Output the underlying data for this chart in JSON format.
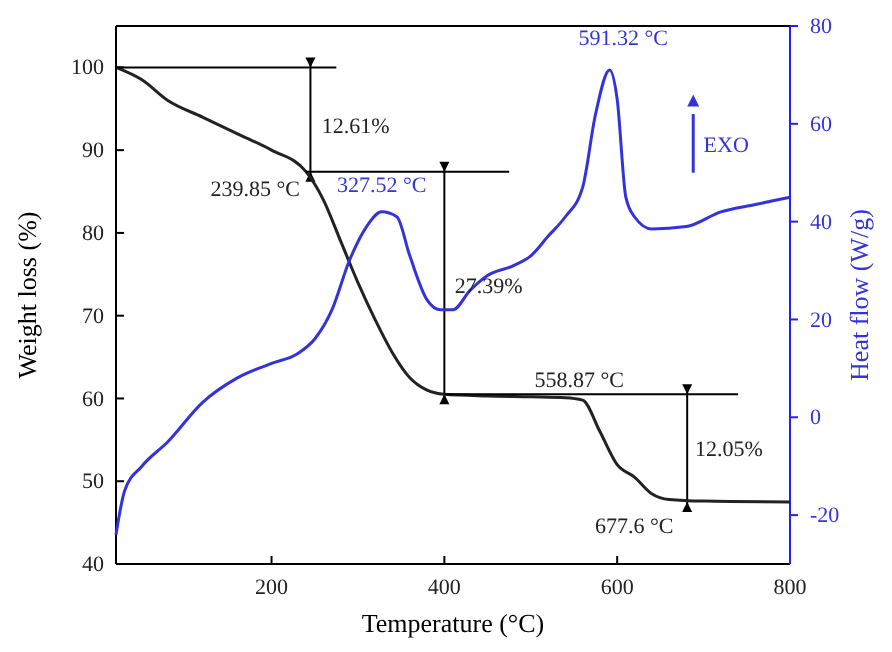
{
  "chart_data": {
    "type": "line",
    "xlabel": "Temperature (°C)",
    "ylabel": "Weight loss (%)",
    "y2label": "Heat flow (W/g)",
    "xlim": [
      20,
      800
    ],
    "xticks": [
      200,
      400,
      600,
      800
    ],
    "ylim": [
      40,
      105
    ],
    "yticks": [
      40,
      50,
      60,
      70,
      80,
      90,
      100
    ],
    "y2lim": [
      -30,
      80
    ],
    "y2ticks": [
      -20,
      0,
      20,
      40,
      60,
      80
    ],
    "series": [
      {
        "color": "#222222",
        "x": [
          20,
          50,
          80,
          120,
          160,
          200,
          239.85,
          260,
          280,
          300,
          320,
          340,
          360,
          380,
          400,
          450,
          500,
          540,
          560,
          580,
          600,
          620,
          640,
          660,
          700,
          800
        ],
        "values": [
          100,
          98.5,
          96,
          94,
          92,
          90,
          87.4,
          84,
          79,
          74,
          69.5,
          65.5,
          62.5,
          61,
          60.5,
          60.3,
          60.2,
          60.1,
          59.8,
          56,
          52,
          50.5,
          48.5,
          47.8,
          47.6,
          47.5
        ]
      },
      {
        "color": "#3333dd",
        "axis": "y2",
        "x": [
          20,
          30,
          50,
          80,
          120,
          160,
          200,
          230,
          250,
          270,
          290,
          310,
          327.52,
          345,
          360,
          380,
          395,
          410,
          430,
          450,
          480,
          500,
          520,
          540,
          560,
          575,
          591.32,
          600,
          610,
          620,
          640,
          680,
          720,
          760,
          800
        ],
        "values": [
          -24,
          -15,
          -10,
          -5,
          3,
          8,
          11,
          13,
          16,
          22,
          32,
          39,
          42,
          41,
          33,
          24,
          22,
          22,
          26,
          29,
          31,
          33,
          37,
          41,
          47,
          62,
          71,
          65,
          45,
          41,
          38.5,
          39,
          42,
          43.5,
          45
        ]
      },
      {
        "color": "#000000",
        "x": [
          20,
          275
        ],
        "values": [
          100,
          100
        ]
      },
      {
        "color": "#000000",
        "x": [
          239.85,
          475
        ],
        "values": [
          87.4,
          87.4
        ]
      },
      {
        "color": "#000000",
        "x": [
          400,
          740
        ],
        "values": [
          60.5,
          60.5
        ]
      }
    ],
    "annotations": [
      "12.61%",
      {
        "text": "239.85 °C",
        "x": 239.85,
        "y": 87.4
      },
      {
        "text": "327.52 °C",
        "x": 327.52,
        "y": 82.5
      },
      "27.39%",
      "558.87 °C",
      "12.05%",
      {
        "text": "677.6 °C",
        "x": 677.6,
        "y": 47.6
      },
      "591.32 °C",
      "EXO"
    ],
    "grid": false
  }
}
